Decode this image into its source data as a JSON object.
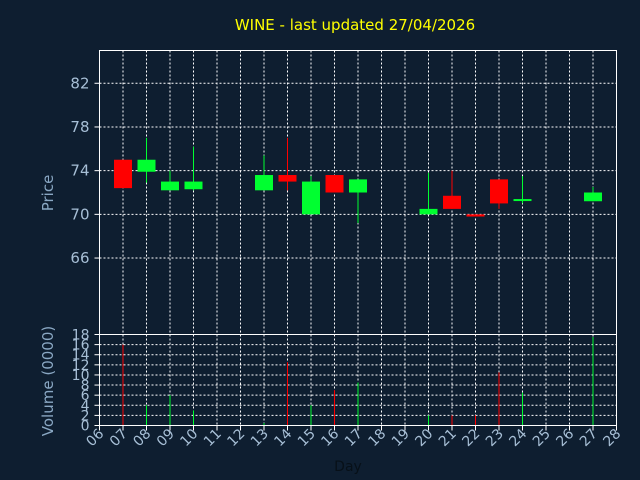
{
  "chart_data": [
    {
      "type": "candlestick",
      "title": "WINE - last updated 27/04/2026",
      "ylabel": "Price",
      "ylim": [
        59,
        85
      ],
      "yticks": [
        66,
        70,
        74,
        78,
        82
      ],
      "grid": true,
      "up_color": "#00ff30",
      "down_color": "#ff0000",
      "x": [
        "07",
        "08",
        "09",
        "10",
        "13",
        "14",
        "15",
        "16",
        "17",
        "20",
        "21",
        "22",
        "23",
        "24",
        "27"
      ],
      "open": [
        75.0,
        73.9,
        72.2,
        72.3,
        72.2,
        73.6,
        70.0,
        73.6,
        72.0,
        70.0,
        71.7,
        70.0,
        73.2,
        71.4,
        71.2
      ],
      "close": [
        72.4,
        75.0,
        73.0,
        73.0,
        73.6,
        73.0,
        73.0,
        72.0,
        73.2,
        70.5,
        70.5,
        69.8,
        71.0,
        71.4,
        72.0
      ],
      "high": [
        75.0,
        77.0,
        74.0,
        76.2,
        75.4,
        77.0,
        73.5,
        73.6,
        73.2,
        73.8,
        74.0,
        70.0,
        73.2,
        73.5,
        72.5
      ],
      "low": [
        72.4,
        72.9,
        72.2,
        72.2,
        72.2,
        72.2,
        70.0,
        72.0,
        69.2,
        70.0,
        70.5,
        69.8,
        70.5,
        71.0,
        71.2
      ]
    },
    {
      "type": "bar",
      "ylabel": "Volume (0000)",
      "ylim": [
        0,
        18
      ],
      "yticks": [
        0,
        2,
        4,
        6,
        8,
        10,
        12,
        14,
        16,
        18
      ],
      "xlabel": "Day",
      "xticks": [
        "06",
        "07",
        "08",
        "09",
        "10",
        "11",
        "12",
        "13",
        "14",
        "15",
        "16",
        "17",
        "18",
        "19",
        "20",
        "21",
        "22",
        "23",
        "24",
        "25",
        "26",
        "27",
        "28"
      ],
      "x": [
        "07",
        "08",
        "09",
        "10",
        "13",
        "14",
        "15",
        "16",
        "17",
        "20",
        "21",
        "22",
        "23",
        "24",
        "27"
      ],
      "values": [
        16,
        4,
        6,
        3,
        0.5,
        12.5,
        4,
        7,
        8.5,
        2,
        2,
        2,
        10.5,
        6.5,
        17.5
      ],
      "grid": true
    }
  ]
}
